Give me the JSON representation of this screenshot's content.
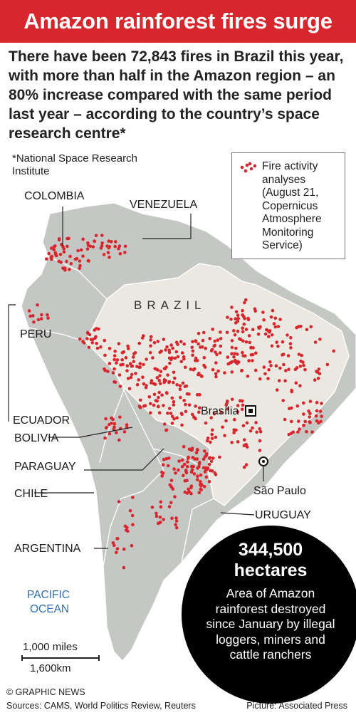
{
  "header": {
    "title": "Amazon rainforest fires surge",
    "intro": "There have been 72,843 fires in Brazil this year, with more than half in the Amazon region – an 80% increase compared with the same period last year – according to the country’s space research centre*",
    "footnote": "*National Space Research Institute"
  },
  "legend": {
    "label": "Fire activity analyses (August 21, Copernicus Atmosphere Monitoring Service)",
    "dot_color": "#d8262d"
  },
  "map": {
    "countries": {
      "colombia": "COLOMBIA",
      "venezuela": "VENEZUELA",
      "brazil": "BRAZIL",
      "peru": "PERU",
      "ecuador": "ECUADOR",
      "bolivia": "BOLIVIA",
      "paraguay": "PARAGUAY",
      "chile": "CHILE",
      "argentina": "ARGENTINA",
      "uruguay": "URUGUAY"
    },
    "ocean_line1": "PACIFIC",
    "ocean_line2": "OCEAN",
    "cities": {
      "brasilia": "Brasília",
      "sao_paulo": "São Paulo"
    },
    "colors": {
      "land": "#c5c7c4",
      "brazil": "#ebe8e1",
      "ocean": "#ffffff",
      "fire": "#d8262d"
    }
  },
  "stat": {
    "value": "344,500",
    "unit": "hectares",
    "description": "Area of Amazon rainforest destroyed since January by illegal loggers, miners and cattle ranchers"
  },
  "scale": {
    "miles": "1,000 miles",
    "km": "1,600km"
  },
  "footer": {
    "credit": "© GRAPHIC NEWS",
    "sources": "Sources: CAMS, World Politics Review, Reuters",
    "picture": "Picture: Associated Press"
  }
}
